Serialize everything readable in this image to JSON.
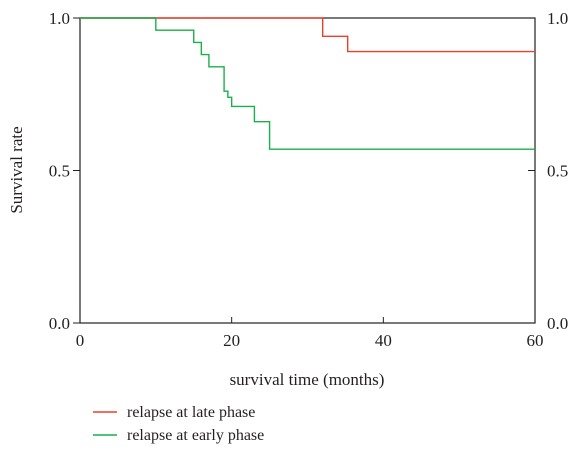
{
  "chart_data": {
    "type": "line",
    "title": "",
    "xlabel": "survival time (months)",
    "ylabel": "Survival rate",
    "xlim": [
      0,
      60
    ],
    "ylim": [
      0.0,
      1.0
    ],
    "x_ticks": [
      0,
      20,
      40,
      60
    ],
    "x_tick_labels": [
      "0",
      "20",
      "40",
      "60"
    ],
    "y_ticks": [
      0.0,
      0.5,
      1.0
    ],
    "y_tick_labels": [
      "0.0",
      "0.5",
      "1.0"
    ],
    "right_axis_tick_labels": [
      "0.0",
      "0.5",
      "1.0"
    ],
    "grid": false,
    "legend_position": "bottom-left",
    "step": true,
    "series": [
      {
        "name": "relapse at late phase",
        "color": "#ee3f2b",
        "x": [
          0,
          32,
          35.3,
          60
        ],
        "y": [
          1.0,
          0.94,
          0.89,
          0.89
        ]
      },
      {
        "name": "relapse at early phase",
        "color": "#19b14a",
        "x": [
          0,
          10,
          15,
          16,
          17,
          19,
          19.5,
          20,
          23,
          25,
          60
        ],
        "y": [
          1.0,
          0.96,
          0.92,
          0.88,
          0.84,
          0.76,
          0.74,
          0.71,
          0.66,
          0.57,
          0.57
        ]
      }
    ]
  }
}
